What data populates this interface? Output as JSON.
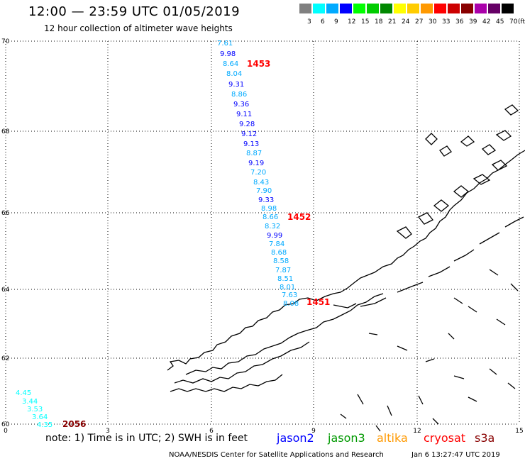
{
  "title": "12:00 — 23:59 UTC 01/05/2019",
  "subtitle": "12 hour collection of altimeter wave heights",
  "legend": {
    "unit": "(ft)",
    "bins": [
      {
        "label": "3",
        "color": "#808080"
      },
      {
        "label": "6",
        "color": "#00ffff"
      },
      {
        "label": "9",
        "color": "#00aaff"
      },
      {
        "label": "12",
        "color": "#0000ff"
      },
      {
        "label": "15",
        "color": "#00ff00"
      },
      {
        "label": "18",
        "color": "#00cc00"
      },
      {
        "label": "21",
        "color": "#008800"
      },
      {
        "label": "24",
        "color": "#ffff00"
      },
      {
        "label": "27",
        "color": "#ffcc00"
      },
      {
        "label": "30",
        "color": "#ff9900"
      },
      {
        "label": "33",
        "color": "#ff0000"
      },
      {
        "label": "36",
        "color": "#cc0000"
      },
      {
        "label": "39",
        "color": "#880000"
      },
      {
        "label": "42",
        "color": "#aa00aa"
      },
      {
        "label": "45",
        "color": "#660066"
      },
      {
        "label": "70",
        "color": "#000000"
      }
    ]
  },
  "axes": {
    "x_ticks": [
      "0",
      "3",
      "6",
      "9",
      "12",
      "15"
    ],
    "y_ticks": [
      "60",
      "62",
      "64",
      "66",
      "68",
      "70"
    ]
  },
  "track_points": [
    {
      "v": "7.61",
      "color": "#00aaff"
    },
    {
      "v": "9.98",
      "color": "#0000ff"
    },
    {
      "v": "8.64",
      "color": "#00aaff"
    },
    {
      "v": "8.04",
      "color": "#00aaff"
    },
    {
      "v": "9.31",
      "color": "#0000ff"
    },
    {
      "v": "8.86",
      "color": "#00aaff"
    },
    {
      "v": "9.36",
      "color": "#0000ff"
    },
    {
      "v": "9.11",
      "color": "#0000ff"
    },
    {
      "v": "9.28",
      "color": "#0000ff"
    },
    {
      "v": "9.12",
      "color": "#0000ff"
    },
    {
      "v": "9.13",
      "color": "#0000ff"
    },
    {
      "v": "8.87",
      "color": "#00aaff"
    },
    {
      "v": "9.19",
      "color": "#0000ff"
    },
    {
      "v": "7.20",
      "color": "#00aaff"
    },
    {
      "v": "8.43",
      "color": "#00aaff"
    },
    {
      "v": "7.90",
      "color": "#00aaff"
    },
    {
      "v": "9.33",
      "color": "#0000ff"
    },
    {
      "v": "8.98",
      "color": "#00aaff"
    },
    {
      "v": "8.66",
      "color": "#00aaff"
    },
    {
      "v": "8.32",
      "color": "#00aaff"
    },
    {
      "v": "9.99",
      "color": "#0000ff"
    },
    {
      "v": "7.84",
      "color": "#00aaff"
    },
    {
      "v": "8.68",
      "color": "#00aaff"
    },
    {
      "v": "8.58",
      "color": "#00aaff"
    },
    {
      "v": "7.87",
      "color": "#00aaff"
    },
    {
      "v": "8.51",
      "color": "#00aaff"
    },
    {
      "v": "8.01",
      "color": "#00aaff"
    },
    {
      "v": "7.63",
      "color": "#00aaff"
    },
    {
      "v": "8.08",
      "color": "#00aaff"
    }
  ],
  "sw_points": [
    {
      "v": "4.45",
      "color": "#00ffff"
    },
    {
      "v": "3.44",
      "color": "#00ffff"
    },
    {
      "v": "3.53",
      "color": "#00ffff"
    },
    {
      "v": "3.64",
      "color": "#00ffff"
    },
    {
      "v": "4.35",
      "color": "#00ffff"
    }
  ],
  "pass_labels": [
    {
      "text": "1453",
      "color": "#ff0000"
    },
    {
      "text": "1452",
      "color": "#ff0000"
    },
    {
      "text": "1451",
      "color": "#ff0000"
    },
    {
      "text": "2056",
      "color": "#880000"
    }
  ],
  "note": "note: 1) Time is in UTC; 2) SWH is in feet",
  "missions": [
    {
      "name": "jason2",
      "color": "#0000ff"
    },
    {
      "name": "jason3",
      "color": "#009900"
    },
    {
      "name": "altika",
      "color": "#ff9900"
    },
    {
      "name": "cryosat",
      "color": "#ff0000"
    },
    {
      "name": "s3a",
      "color": "#880000"
    }
  ],
  "footer": "NOAA/NESDIS Center for Satellite Applications and Research",
  "timestamp": "Jan  6 13:27:47 UTC 2019"
}
